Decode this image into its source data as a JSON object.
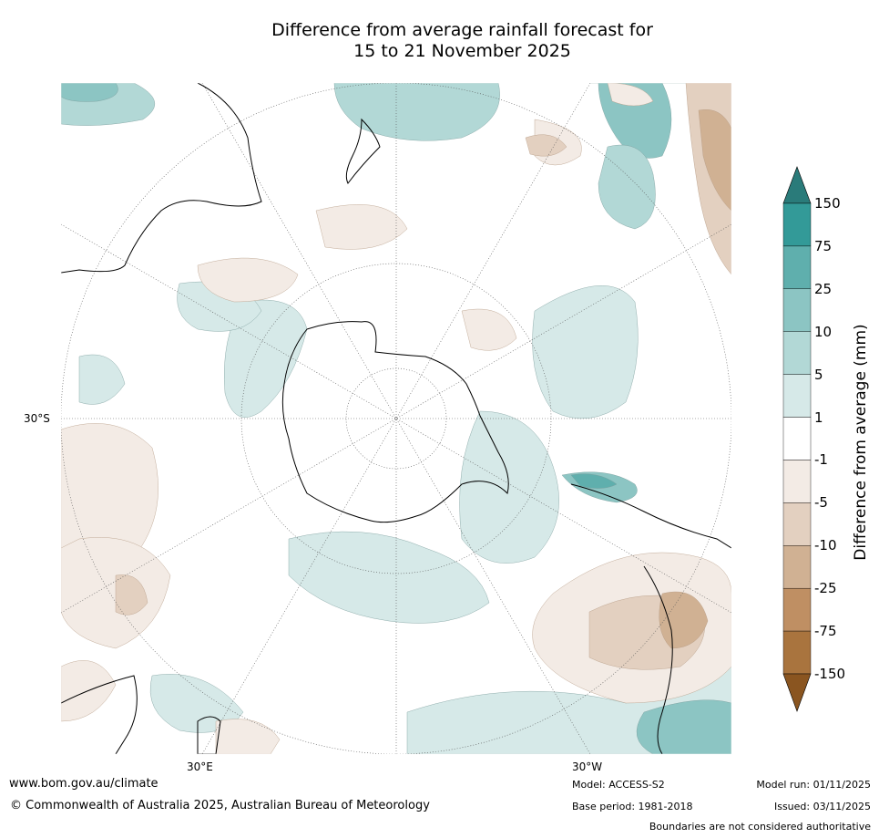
{
  "title": {
    "line1": "Difference from average rainfall forecast for",
    "line2": "15 to 21 November 2025"
  },
  "map": {
    "lat_tick": "30°S",
    "lon_ticks": [
      "30°E",
      "30°W"
    ]
  },
  "legend": {
    "title": "Difference from average (mm)",
    "levels": [
      "150",
      "75",
      "25",
      "10",
      "5",
      "1",
      "-1",
      "-5",
      "-10",
      "-25",
      "-75",
      "-150"
    ],
    "colors": [
      "#2a7b7a",
      "#339a98",
      "#5fafad",
      "#8cc5c3",
      "#b2d8d6",
      "#d6e9e8",
      "#ffffff",
      "#f3ebe5",
      "#e3d0c0",
      "#d0b193",
      "#bf8f63",
      "#a9743e",
      "#8a5520"
    ]
  },
  "footer": {
    "website": "www.bom.gov.au/climate",
    "copyright": "© Commonwealth of Australia 2025, Australian Bureau of Meteorology",
    "model": "Model: ACCESS-S2",
    "base_period": "Base period: 1981-2018",
    "model_run": "Model run: 01/11/2025",
    "issued": "Issued: 03/11/2025",
    "disclaimer": "Boundaries are not considered authoritative"
  }
}
